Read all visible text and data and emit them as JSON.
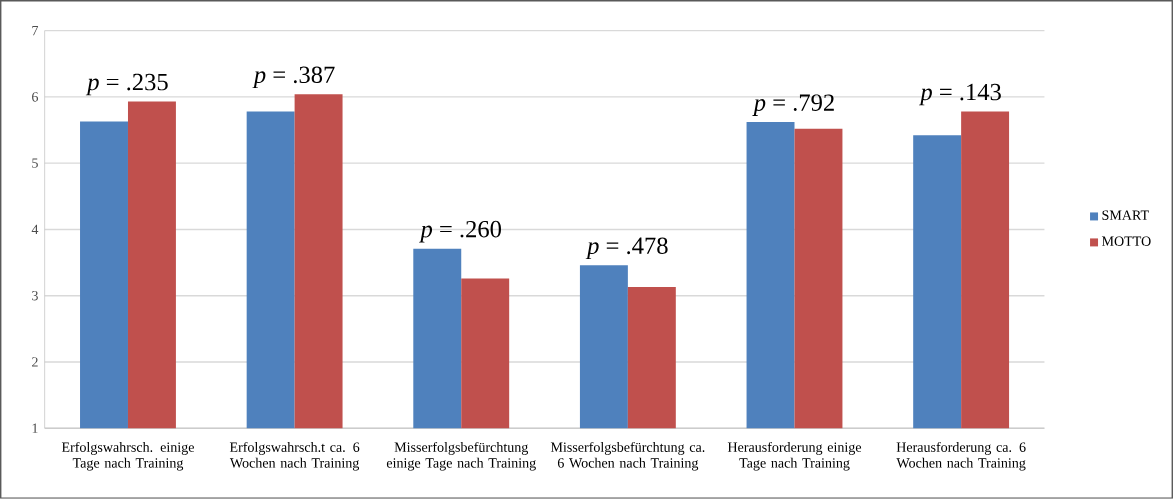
{
  "chart_data": {
    "type": "bar",
    "categories": [
      "Erfolgswahrsch. einige Tage nach Training",
      "Erfolgswahrsch.t ca. 6 Wochen nach Training",
      "Misserfolgsbefürchtung einige Tage nach Training",
      "Misserfolgsbefürchtung ca. 6 Wochen nach Training",
      "Herausforderung einige Tage nach Training",
      "Herausforderung ca. 6 Wochen nach Training"
    ],
    "series": [
      {
        "name": "SMART",
        "color": "#4f81bd",
        "values": [
          5.63,
          5.78,
          3.71,
          3.46,
          5.62,
          5.42
        ]
      },
      {
        "name": "MOTTO",
        "color": "#c0504d",
        "values": [
          5.93,
          6.04,
          3.26,
          3.13,
          5.52,
          5.78
        ]
      }
    ],
    "annotations": [
      "*p* = .235",
      "*p* = .387",
      "*p* = .260",
      "*p* = .478",
      "*p* = .792",
      "*p* = .143"
    ],
    "ylim": [
      1,
      7
    ],
    "yticks": [
      1,
      2,
      3,
      4,
      5,
      6,
      7
    ],
    "grid": "y",
    "legend": "right"
  }
}
